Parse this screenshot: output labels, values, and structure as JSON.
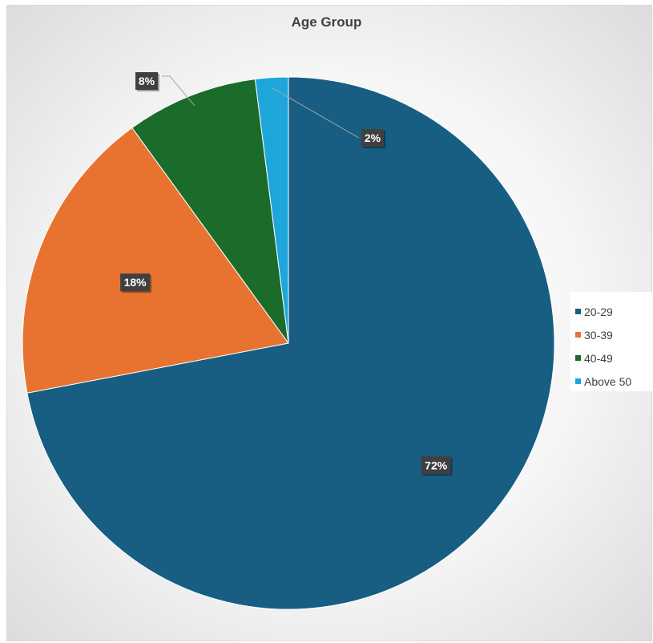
{
  "chart_data": {
    "type": "pie",
    "title": "Age Group",
    "categories": [
      "20-29",
      "30-39",
      "40-49",
      "Above 50"
    ],
    "values": [
      72,
      18,
      8,
      2
    ],
    "data_labels": [
      "72%",
      "18%",
      "8%",
      "2%"
    ],
    "colors": [
      "#175e82",
      "#e87331",
      "#1b6c2a",
      "#1ea6da"
    ],
    "legend_placement": "right",
    "start_angle_deg": 0,
    "direction": "clockwise"
  }
}
